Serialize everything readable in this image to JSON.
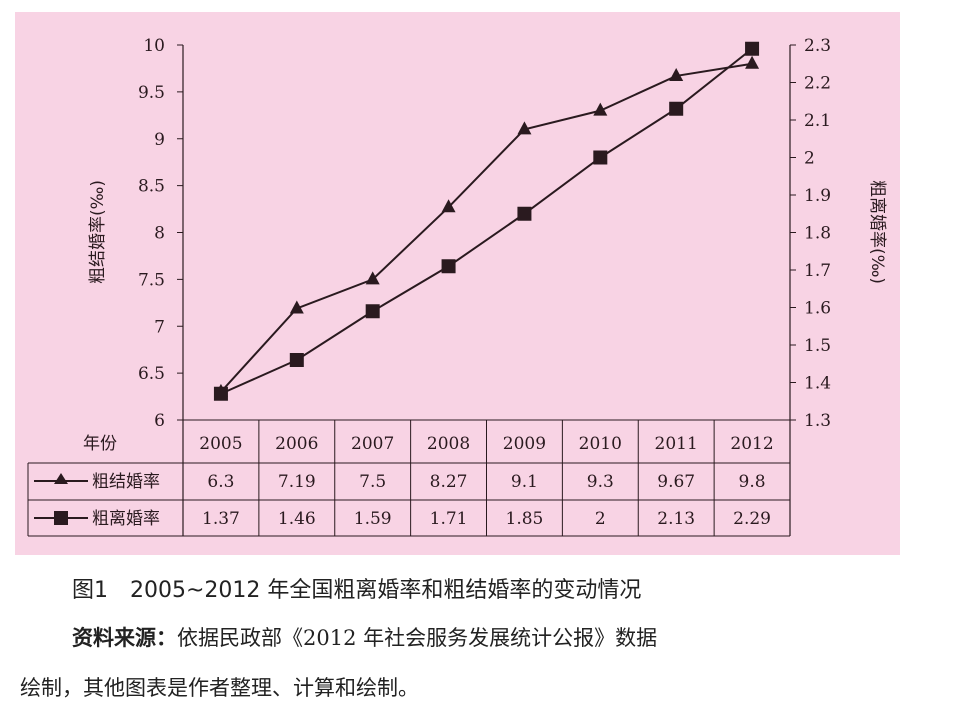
{
  "chart_data": {
    "type": "line",
    "categories": [
      "2005",
      "2006",
      "2007",
      "2008",
      "2009",
      "2010",
      "2011",
      "2012"
    ],
    "category_header": "年份",
    "series": [
      {
        "name": "粗结婚率",
        "marker": "triangle",
        "axis": "left",
        "values": [
          6.3,
          7.19,
          7.5,
          8.27,
          9.1,
          9.3,
          9.67,
          9.8
        ],
        "labels": [
          "6.3",
          "7.19",
          "7.5",
          "8.27",
          "9.1",
          "9.3",
          "9.67",
          "9.8"
        ]
      },
      {
        "name": "粗离婚率",
        "marker": "square",
        "axis": "right",
        "values": [
          1.37,
          1.46,
          1.59,
          1.71,
          1.85,
          2,
          2.13,
          2.29
        ],
        "labels": [
          "1.37",
          "1.46",
          "1.59",
          "1.71",
          "1.85",
          "2",
          "2.13",
          "2.29"
        ]
      }
    ],
    "ylabel": "粗结婚率(‰)",
    "ylim": [
      6,
      10
    ],
    "yticks": [
      "6",
      "6.5",
      "7",
      "7.5",
      "8",
      "8.5",
      "9",
      "9.5",
      "10"
    ],
    "y2label": "粗离婚率(‰)",
    "y2lim": [
      1.3,
      2.3
    ],
    "y2ticks": [
      "1.3",
      "1.4",
      "1.5",
      "1.6",
      "1.7",
      "1.8",
      "1.9",
      "2",
      "2.1",
      "2.2",
      "2.3"
    ],
    "grid": false,
    "legend": "data-table-bottom"
  },
  "caption": {
    "title": "图1　2005~2012 年全国粗离婚率和粗结婚率的变动情况",
    "source_label": "资料来源：",
    "source_text": "依据民政部《2012 年社会服务发展统计公报》数据",
    "source_cont": "绘制，其他图表是作者整理、计算和绘制。"
  },
  "colors": {
    "background": "#f8d3e4",
    "ink": "#2a1a1f"
  }
}
